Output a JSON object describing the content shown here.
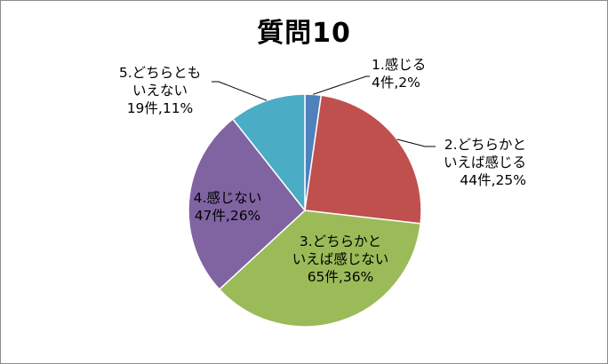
{
  "chart_data": {
    "type": "pie",
    "title": "質問10",
    "slices": [
      {
        "label_lines": [
          "1.感じる",
          "4件,2%"
        ],
        "value": 4,
        "percent": 2,
        "color": "#4f81bd"
      },
      {
        "label_lines": [
          "2.どちらかと",
          "いえば感じる",
          "44件,25%"
        ],
        "value": 44,
        "percent": 25,
        "color": "#c0504d"
      },
      {
        "label_lines": [
          "3.どちらかと",
          "いえば感じない",
          "65件,36%"
        ],
        "value": 65,
        "percent": 36,
        "color": "#9bbb59"
      },
      {
        "label_lines": [
          "4.感じない",
          "47件,26%"
        ],
        "value": 47,
        "percent": 26,
        "color": "#8064a2"
      },
      {
        "label_lines": [
          "5.どちらとも",
          "いえない",
          "19件,11%"
        ],
        "value": 19,
        "percent": 11,
        "color": "#4bacc6"
      }
    ],
    "start_angle_deg": 0,
    "direction": "clockwise",
    "legend": "none"
  }
}
